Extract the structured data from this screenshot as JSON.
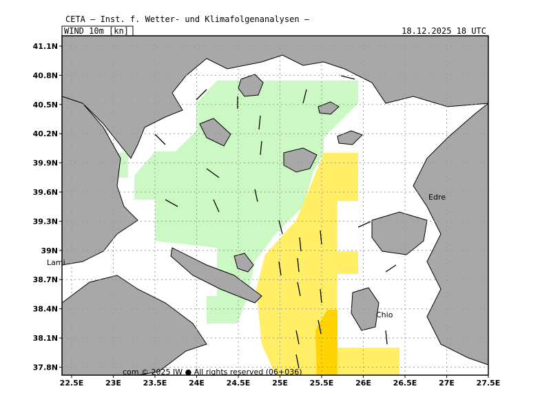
{
  "header": {
    "institute": "CETA — Inst. f. Wetter- und Klimafolgenanalysen —",
    "parameter": "WIND 10m [kn]",
    "valid_time": "18.12.2025 18 UTC"
  },
  "latitude_labels": [
    "41.1N",
    "40.8N",
    "40.5N",
    "40.2N",
    "39.9N",
    "39.6N",
    "39.3N",
    "39N",
    "38.7N",
    "38.4N",
    "38.1N",
    "37.8N"
  ],
  "longitude_labels": [
    "22.5E",
    "23E",
    "23.5E",
    "24E",
    "24.5E",
    "25E",
    "25.5E",
    "26E",
    "26.5E",
    "27E",
    "27.5E"
  ],
  "place_labels": [
    "Lami",
    "Edre",
    "Chio"
  ],
  "footer": "com © 2025 IW ● All rights reserved (06+036)"
}
